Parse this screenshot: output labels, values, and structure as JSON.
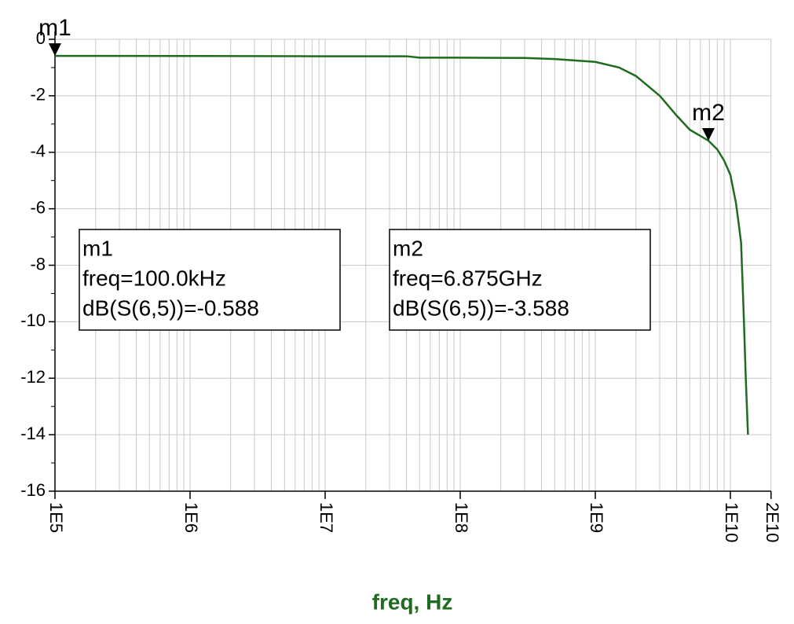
{
  "chart_data": {
    "type": "line",
    "x_label": "freq, Hz",
    "xscale": "log",
    "xlim": [
      100000,
      20000000000
    ],
    "xticks": [
      {
        "value": 100000,
        "label": "1E5"
      },
      {
        "value": 1000000,
        "label": "1E6"
      },
      {
        "value": 10000000,
        "label": "1E7"
      },
      {
        "value": 100000000,
        "label": "1E8"
      },
      {
        "value": 1000000000,
        "label": "1E9"
      },
      {
        "value": 10000000000,
        "label": "1E10"
      },
      {
        "value": 20000000000,
        "label": "2E10"
      }
    ],
    "ylim": [
      -16,
      0
    ],
    "yticks": [
      0,
      -2,
      -4,
      -6,
      -8,
      -10,
      -12,
      -14,
      -16
    ],
    "grid": true,
    "series": [
      {
        "color": "#1f6b1f",
        "x": [
          100000,
          1000000,
          10000000,
          40000000,
          50000000,
          100000000,
          300000000,
          500000000,
          1000000000,
          1500000000,
          2000000000,
          3000000000,
          4000000000,
          5000000000,
          6875000000,
          8000000000,
          9000000000,
          10000000000,
          11000000000,
          11500000000,
          12000000000,
          12500000000,
          13000000000,
          13500000000
        ],
        "values": [
          -0.588,
          -0.59,
          -0.6,
          -0.6,
          -0.65,
          -0.65,
          -0.66,
          -0.7,
          -0.8,
          -1.0,
          -1.3,
          -2.0,
          -2.7,
          -3.2,
          -3.588,
          -3.9,
          -4.3,
          -4.8,
          -5.8,
          -6.5,
          -7.2,
          -9.5,
          -12,
          -14
        ]
      }
    ],
    "markers": [
      {
        "name": "m1",
        "x": 100000,
        "y": -0.588,
        "lines": [
          "m1",
          "freq=100.0kHz",
          "dB(S(6,5))=-0.588"
        ]
      },
      {
        "name": "m2",
        "x": 6875000000,
        "y": -3.588,
        "lines": [
          "m2",
          "freq=6.875GHz",
          "dB(S(6,5))=-3.588"
        ]
      }
    ]
  }
}
